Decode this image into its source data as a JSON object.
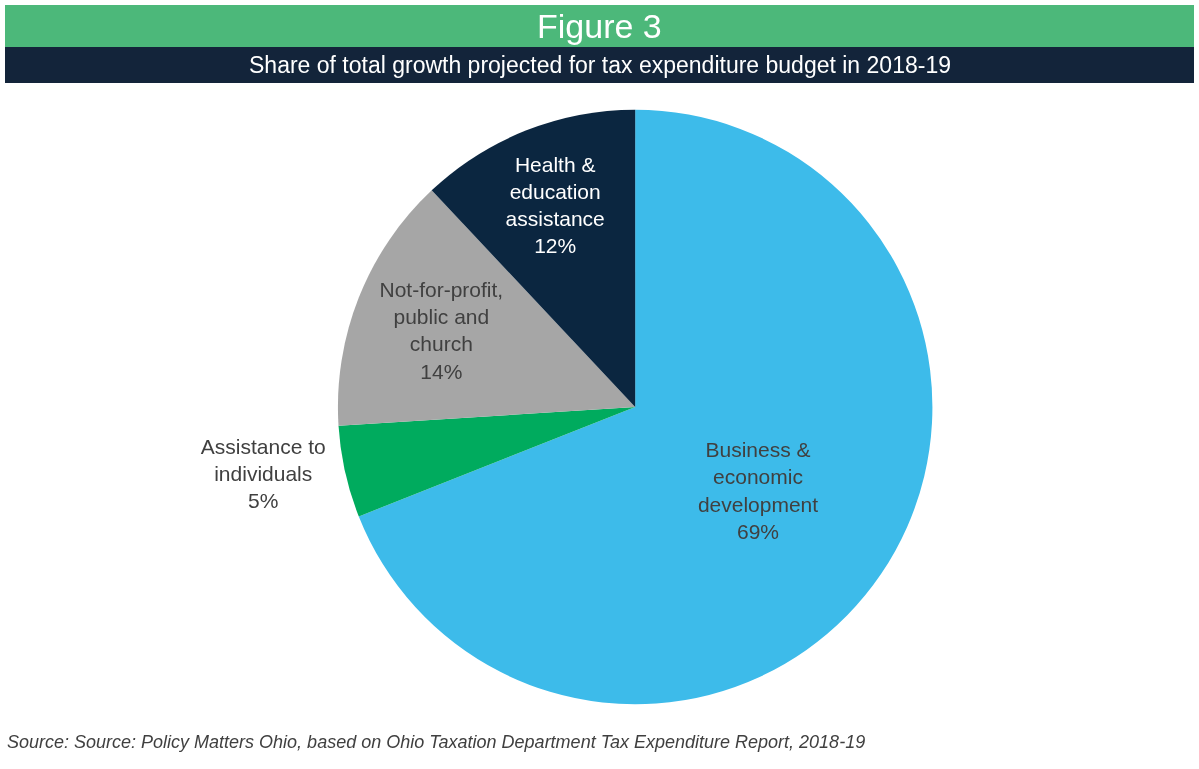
{
  "chart_data": {
    "type": "pie",
    "title": "Figure 3",
    "subtitle": "Share of total growth projected for tax expenditure budget in 2018-19",
    "categories": [
      "Business &\neconomic\ndevelopment",
      "Assistance to\nindividuals",
      "Not-for-profit,\npublic and\nchurch",
      "Health &\neducation\nassistance"
    ],
    "values": [
      69,
      5,
      14,
      12
    ],
    "colors": [
      "#3dbbea",
      "#00ab5e",
      "#a6a6a6",
      "#0b2640"
    ],
    "value_labels": [
      "69%",
      "5%",
      "14%",
      "12%"
    ],
    "annotations": [
      "Source: Source: Policy Matters Ohio, based on Ohio Taxation Department Tax Expenditure Report, 2018-19"
    ]
  }
}
